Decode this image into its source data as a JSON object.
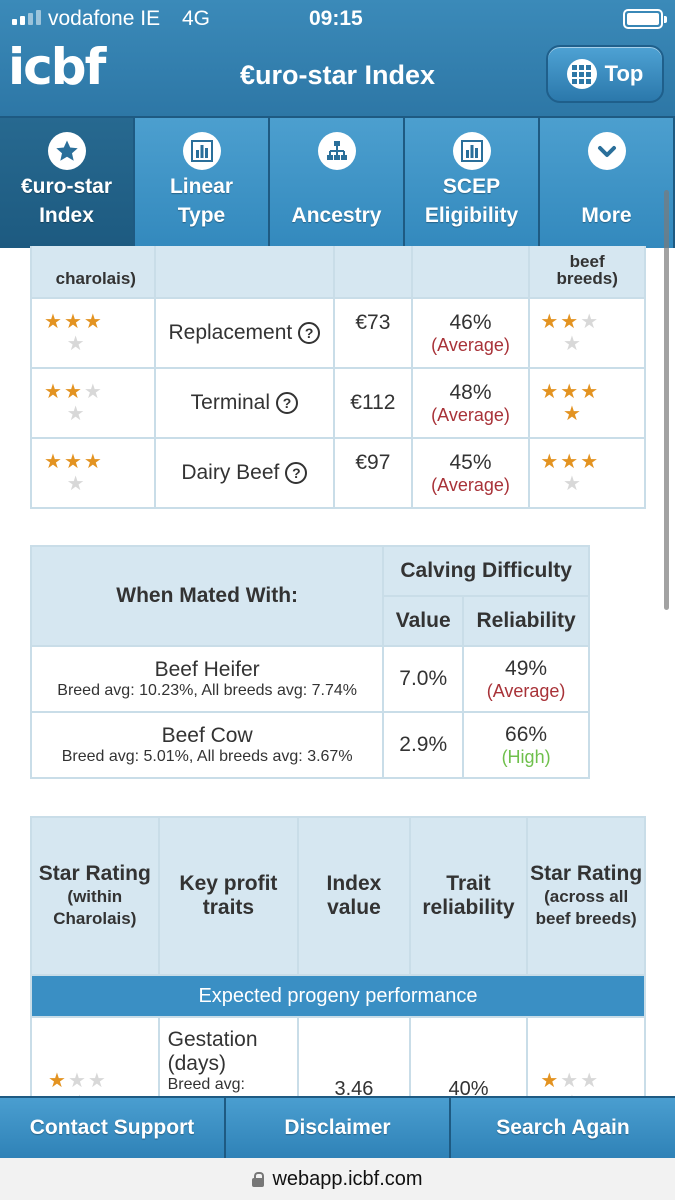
{
  "status_bar": {
    "carrier": "vodafone IE",
    "network": "4G",
    "time": "09:15"
  },
  "header": {
    "logo": "icbf",
    "title": "€uro-star Index",
    "top_button": "Top"
  },
  "tabs": [
    {
      "label": "€uro-star\nIndex",
      "icon": "star-icon",
      "active": true
    },
    {
      "label": "Linear\nType",
      "icon": "bar-chart-icon",
      "active": false
    },
    {
      "label": "Ancestry",
      "icon": "hierarchy-icon",
      "active": false
    },
    {
      "label": "SCEP\nEligibility",
      "icon": "bar-chart-icon",
      "active": false
    },
    {
      "label": "More",
      "icon": "chevron-down-icon",
      "active": false
    }
  ],
  "index_table": {
    "header_fragments": {
      "col1": "charolais)",
      "col5_top": "beef",
      "col5": "breeds)"
    },
    "rows": [
      {
        "stars_within": 3,
        "name": "Replacement",
        "value": "€73",
        "reliability": "46%",
        "reliability_label": "(Average)",
        "stars_all": 2
      },
      {
        "stars_within": 2,
        "name": "Terminal",
        "value": "€112",
        "reliability": "48%",
        "reliability_label": "(Average)",
        "stars_all": 4
      },
      {
        "stars_within": 3,
        "name": "Dairy Beef",
        "value": "€97",
        "reliability": "45%",
        "reliability_label": "(Average)",
        "stars_all": 3
      }
    ]
  },
  "calving_table": {
    "mated_with_header": "When Mated With:",
    "calving_header": "Calving Difficulty",
    "value_header": "Value",
    "reliability_header": "Reliability",
    "rows": [
      {
        "name": "Beef Heifer",
        "detail": "Breed avg: 10.23%, All breeds avg: 7.74%",
        "value": "7.0%",
        "reliability": "49%",
        "reliability_label": "(Average)",
        "level": "avg"
      },
      {
        "name": "Beef Cow",
        "detail": "Breed avg: 5.01%, All breeds avg: 3.67%",
        "value": "2.9%",
        "reliability": "66%",
        "reliability_label": "(High)",
        "level": "high"
      }
    ]
  },
  "traits_table": {
    "headers": {
      "star_rating": "Star Rating",
      "star_rating_sub": "(within Charolais)",
      "key_profit": "Key profit traits",
      "index_value": "Index value",
      "trait_reliability": "Trait reliability",
      "star_rating_all": "Star Rating",
      "star_rating_all_sub": "(across all beef breeds)"
    },
    "band": "Expected progeny performance",
    "rows": [
      {
        "stars_within": 1,
        "trait": "Gestation (days)",
        "trait_sub": "Breed avg:",
        "value": "3.46",
        "reliability": "40%",
        "stars_all": 1
      }
    ]
  },
  "bottom_bar": {
    "contact": "Contact Support",
    "disclaimer": "Disclaimer",
    "search": "Search Again"
  },
  "url": "webapp.icbf.com",
  "colors": {
    "header_blue": "#2d77a6",
    "tab_blue": "#3d93c7",
    "star_orange": "#e39321",
    "avg_red": "#a83238",
    "high_green": "#6fc04c",
    "table_header": "#d6e7f1"
  }
}
